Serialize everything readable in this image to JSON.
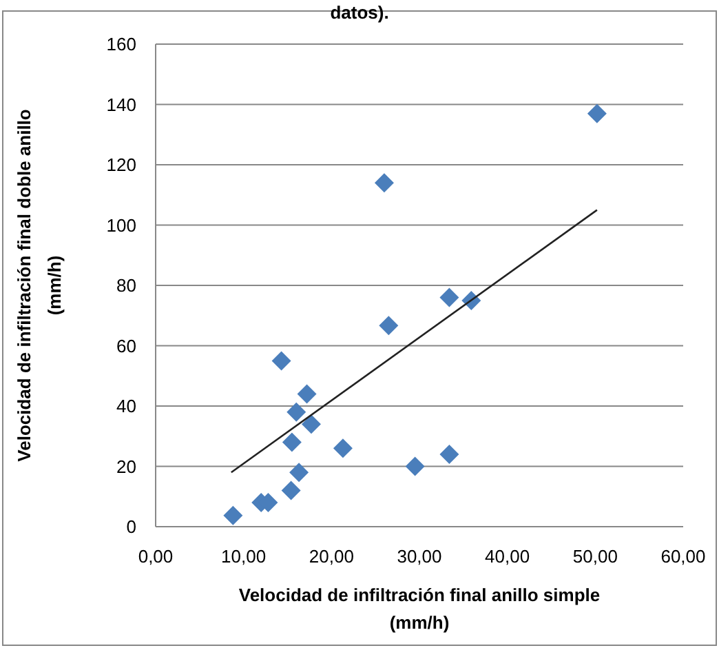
{
  "chart_data": {
    "type": "scatter",
    "title": "datos).",
    "xlabel": "Velocidad de infiltración final anillo simple\n(mm/h)",
    "ylabel": "Velocidad de infiltración final doble anillo\n(mm/h)",
    "xlim": [
      0,
      60
    ],
    "ylim": [
      0,
      160
    ],
    "xticks": [
      {
        "value": 0,
        "label": "0,00"
      },
      {
        "value": 10,
        "label": "10,00"
      },
      {
        "value": 20,
        "label": "20,00"
      },
      {
        "value": 30,
        "label": "30,00"
      },
      {
        "value": 40,
        "label": "40,00"
      },
      {
        "value": 50,
        "label": "50,00"
      },
      {
        "value": 60,
        "label": "60,00"
      }
    ],
    "yticks": [
      0,
      20,
      40,
      60,
      80,
      100,
      120,
      140,
      160
    ],
    "grid": "y",
    "series": [
      {
        "marker": "diamond",
        "color": "#4a7ebb",
        "x": [
          50.2,
          26.0,
          33.4,
          35.9,
          26.5,
          14.3,
          17.2,
          16.0,
          17.7,
          15.5,
          21.3,
          33.4,
          29.5,
          16.3,
          15.4,
          12.0,
          12.8,
          8.8
        ],
        "values": [
          137,
          114,
          76,
          75,
          66.7,
          55,
          44,
          38,
          34,
          28,
          26,
          24,
          20,
          18,
          12,
          8,
          8,
          3.7
        ]
      },
      {
        "type": "line",
        "marker": "none",
        "color": "#222222",
        "x": [
          8.6,
          50.2
        ],
        "values": [
          18,
          105
        ]
      }
    ]
  }
}
